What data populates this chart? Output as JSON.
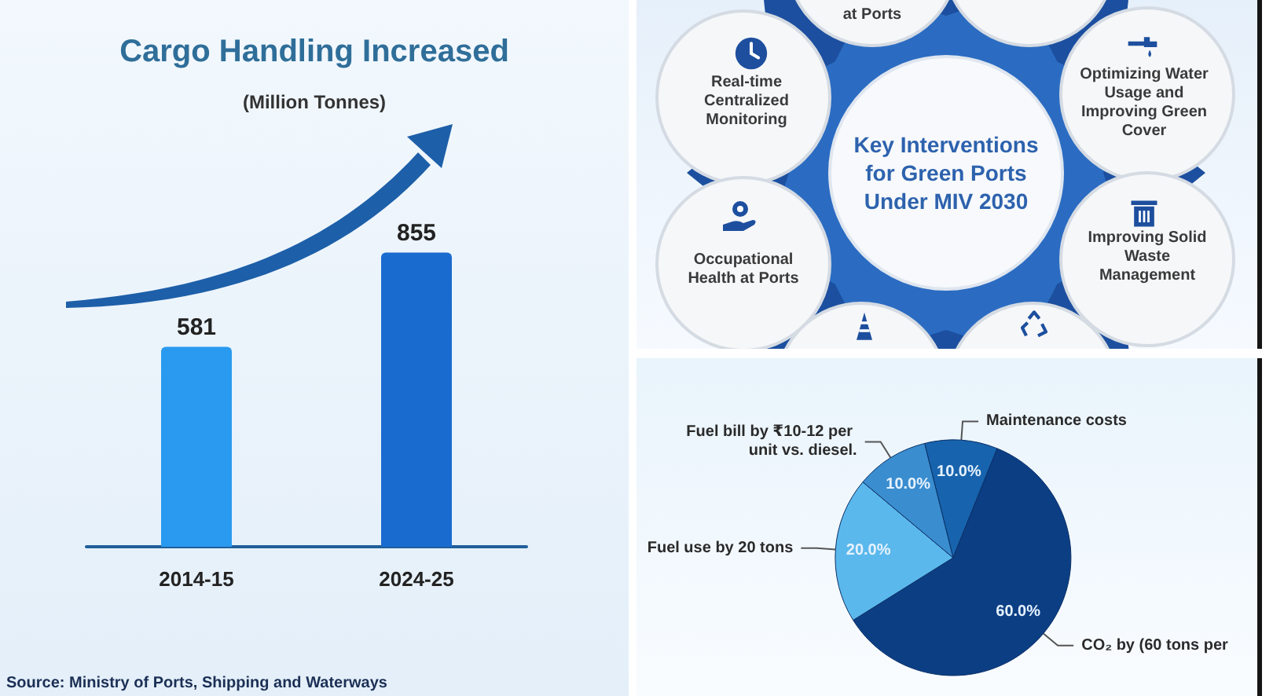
{
  "chart_data": [
    {
      "type": "bar",
      "title": "Cargo Handling Increased",
      "subtitle": "(Million Tonnes)",
      "categories": [
        "2014-15",
        "2024-25"
      ],
      "values": [
        581,
        855
      ],
      "colors": [
        "#2a9af0",
        "#1a6bd0"
      ],
      "data_labels": true,
      "annotations": [
        "Source: Ministry of Ports, Shipping and Waterways"
      ]
    },
    {
      "type": "other",
      "title": "Key Interventions for Green Ports Under MIV 2030",
      "annotations": [
        "at Ports",
        "Real-time Centralized Monitoring",
        "Optimizing Water Usage and Improving Green Cover",
        "Occupational Health at Ports",
        "Improving Solid Waste Management"
      ]
    },
    {
      "type": "pie",
      "categories": [
        "Maintenance costs",
        "CO₂ by (60 tons per",
        "Fuel use by 20 tons",
        "Fuel bill by ₹10-12 per unit vs. diesel."
      ],
      "values": [
        10,
        60,
        20,
        10
      ],
      "colors": [
        "#1763ad",
        "#0c3e84",
        "#5bb8ec",
        "#3a8dcf"
      ],
      "value_labels": [
        "10.0%",
        "60.0%",
        "20.0%",
        "10.0%"
      ]
    }
  ]
}
